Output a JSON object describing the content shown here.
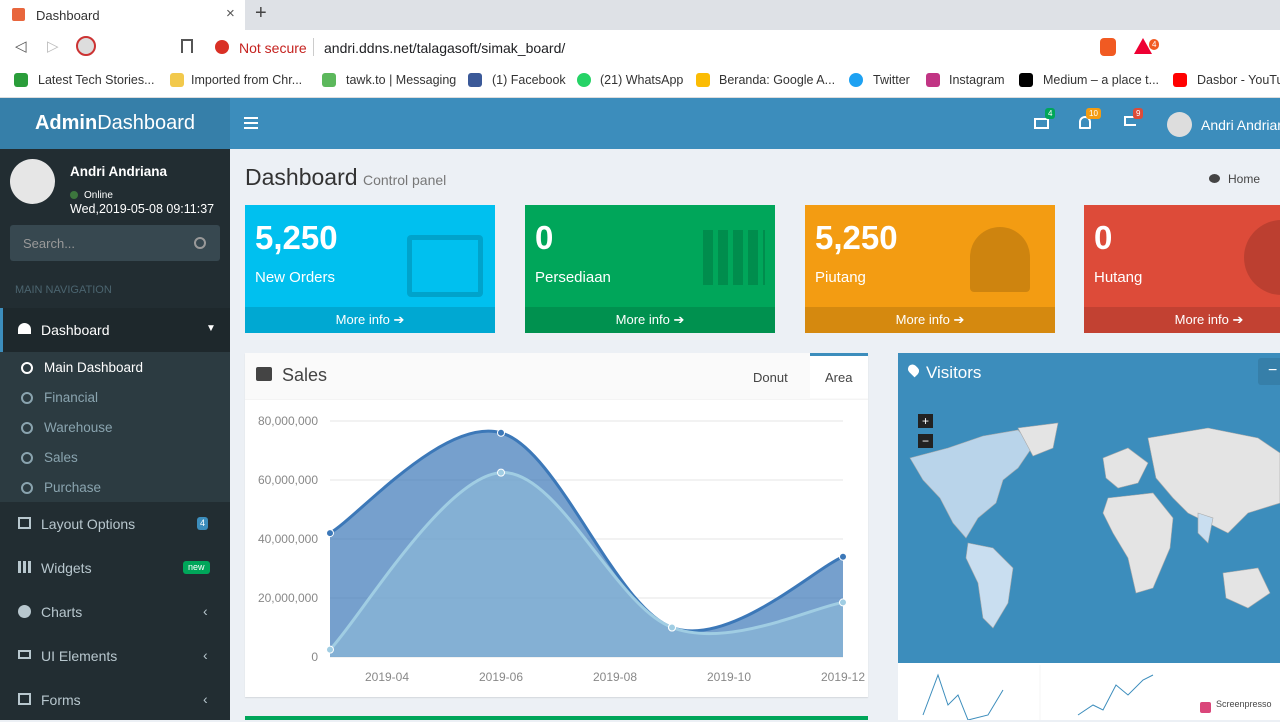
{
  "browser": {
    "tab_title": "Dashboard",
    "security": "Not secure",
    "url": "andri.ddns.net/talagasoft/simak_board/",
    "extension_badge": "4",
    "bookmarks": [
      "Latest Tech Stories...",
      "Imported from Chr...",
      "tawk.to | Messaging",
      "(1) Facebook",
      "(21) WhatsApp",
      "Beranda: Google A...",
      "Twitter",
      "Instagram",
      "Medium – a place t...",
      "Dasbor - YouTu"
    ]
  },
  "header": {
    "logo_bold": "Admin",
    "logo_rest": "Dashboard",
    "badges": [
      "4",
      "10",
      "9"
    ],
    "user": "Andri Andriana"
  },
  "sidebar": {
    "user": "Andri Andriana",
    "status": "Online",
    "datetime": "Wed,2019-05-08 09:11:37",
    "search": "Search...",
    "section": "MAIN NAVIGATION",
    "active": "Dashboard",
    "submenu": [
      "Main Dashboard",
      "Financial",
      "Warehouse",
      "Sales",
      "Purchase"
    ],
    "menu": [
      {
        "label": "Layout Options",
        "badge": "4"
      },
      {
        "label": "Widgets",
        "badge": "new"
      },
      {
        "label": "Charts"
      },
      {
        "label": "UI Elements"
      },
      {
        "label": "Forms"
      }
    ]
  },
  "content": {
    "title": "Dashboard",
    "subtitle": "Control panel",
    "breadcrumb": "Home",
    "boxes": [
      {
        "value": "5,250",
        "label": "New Orders",
        "link": "More info"
      },
      {
        "value": "0",
        "label": "Persediaan",
        "link": "More info"
      },
      {
        "value": "5,250",
        "label": "Piutang",
        "link": "More info"
      },
      {
        "value": "0",
        "label": "Hutang",
        "link": "More info"
      }
    ]
  },
  "sales": {
    "title": "Sales",
    "tabs": [
      "Donut",
      "Area"
    ],
    "chart_data": {
      "type": "area",
      "x": [
        "2019-03",
        "2019-06",
        "2019-09",
        "2019-12"
      ],
      "xticks": [
        "2019-04",
        "2019-06",
        "2019-08",
        "2019-10",
        "2019-12"
      ],
      "ylim": [
        0,
        80000000
      ],
      "yticks": [
        0,
        {
          "value": 20000000,
          "label": "20,000,000"
        },
        {
          "value": 40000000,
          "label": "40,000,000"
        },
        {
          "value": 60000000,
          "label": "60,000,000"
        },
        {
          "value": 80000000,
          "label": "80,000,000"
        }
      ],
      "grid": true,
      "series": [
        {
          "color": "#3c78b8",
          "values": [
            42000000,
            76000000,
            10000000,
            34000000
          ]
        },
        {
          "color": "#a0cde3",
          "values": [
            2500000,
            62500000,
            10000000,
            18500000
          ]
        }
      ]
    }
  },
  "visitors": {
    "title": "Visitors"
  },
  "watermark": "Screenpresso"
}
